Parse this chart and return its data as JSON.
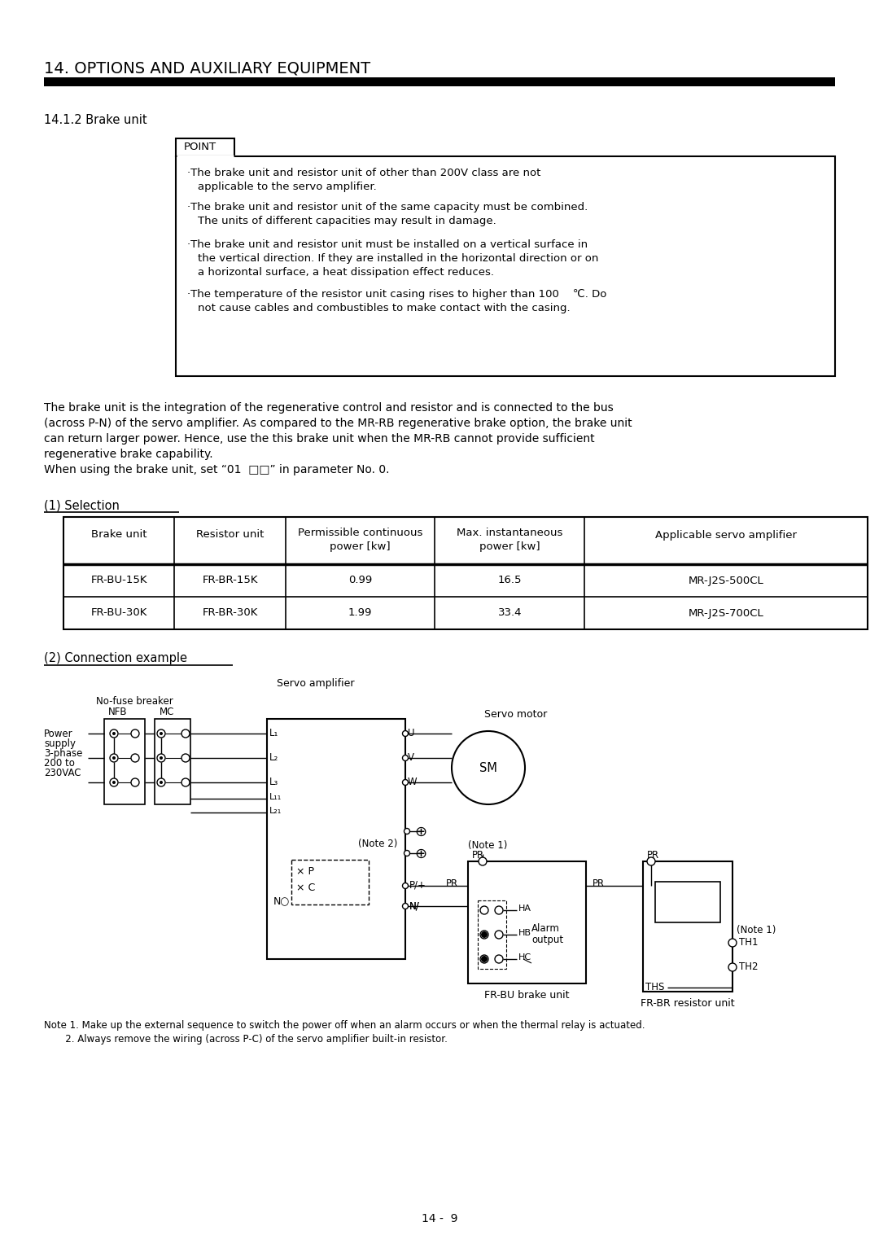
{
  "title": "14. OPTIONS AND AUXILIARY EQUIPMENT",
  "subtitle": "14.1.2 Brake unit",
  "section1": "(1) Selection",
  "section2": "(2) Connection example",
  "point_label": "POINT",
  "body_text": [
    "The brake unit is the integration of the regenerative control and resistor and is connected to the bus",
    "(across P-N) of the servo amplifier. As compared to the MR-RB regenerative brake option, the brake unit",
    "can return larger power. Hence, use the this brake unit when the MR-RB cannot provide sufficient",
    "regenerative brake capability.",
    "When using the brake unit, set “01  □□” in parameter No. 0."
  ],
  "table_headers_line1": [
    "Brake unit",
    "Resistor unit",
    "Permissible continuous",
    "Max. instantaneous",
    "Applicable servo amplifier"
  ],
  "table_headers_line2": [
    "",
    "",
    "power [kw]",
    "power [kw]",
    ""
  ],
  "table_rows": [
    [
      "FR-BU-15K",
      "FR-BR-15K",
      "0.99",
      "16.5",
      "MR-J2S-500CL"
    ],
    [
      "FR-BU-30K",
      "FR-BR-30K",
      "1.99",
      "33.4",
      "MR-J2S-700CL"
    ]
  ],
  "note_text_1": "Note 1. Make up the external sequence to switch the power off when an alarm occurs or when the thermal relay is actuated.",
  "note_text_2": "       2. Always remove the wiring (across P-C) of the servo amplifier built-in resistor.",
  "page_num": "14 -  9",
  "bg_color": "#ffffff"
}
